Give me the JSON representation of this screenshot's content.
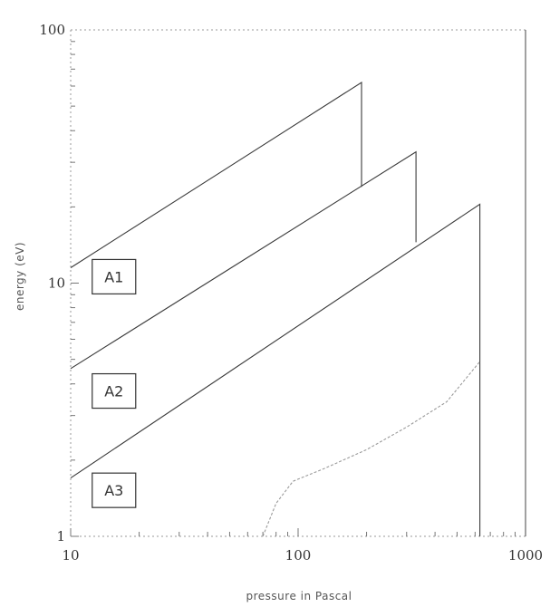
{
  "chart_data": {
    "type": "line",
    "xlabel": "pressure in Pascal",
    "ylabel": "energy (eV)",
    "x_scale": "log",
    "y_scale": "log",
    "xlim": [
      10,
      1000
    ],
    "ylim": [
      1,
      100
    ],
    "x_ticks": [
      {
        "value": 10,
        "label": "10"
      },
      {
        "value": 100,
        "label": "100"
      },
      {
        "value": 1000,
        "label": "1000"
      }
    ],
    "y_ticks": [
      {
        "value": 1,
        "label": "1"
      },
      {
        "value": 10,
        "label": "10"
      },
      {
        "value": 100,
        "label": "100"
      }
    ],
    "grid": false,
    "series": [
      {
        "name": "A1",
        "faint": false,
        "points": [
          [
            10,
            11.5
          ],
          [
            190,
            62
          ],
          [
            190,
            24
          ]
        ]
      },
      {
        "name": "A2",
        "faint": false,
        "points": [
          [
            10,
            4.6
          ],
          [
            330,
            33
          ],
          [
            330,
            14.5
          ]
        ]
      },
      {
        "name": "A3",
        "faint": false,
        "points": [
          [
            10,
            1.7
          ],
          [
            630,
            20.5
          ],
          [
            630,
            1.0
          ]
        ]
      },
      {
        "name": "",
        "faint": true,
        "points": [
          [
            70,
            1.0
          ],
          [
            80,
            1.35
          ],
          [
            95,
            1.65
          ],
          [
            130,
            1.85
          ],
          [
            200,
            2.2
          ],
          [
            300,
            2.7
          ],
          [
            450,
            3.4
          ],
          [
            630,
            4.9
          ]
        ]
      }
    ],
    "annotations": [
      {
        "text": "A1",
        "x": 15.5,
        "y": 10.6
      },
      {
        "text": "A2",
        "x": 15.5,
        "y": 3.75
      },
      {
        "text": "A3",
        "x": 15.5,
        "y": 1.52
      }
    ]
  }
}
